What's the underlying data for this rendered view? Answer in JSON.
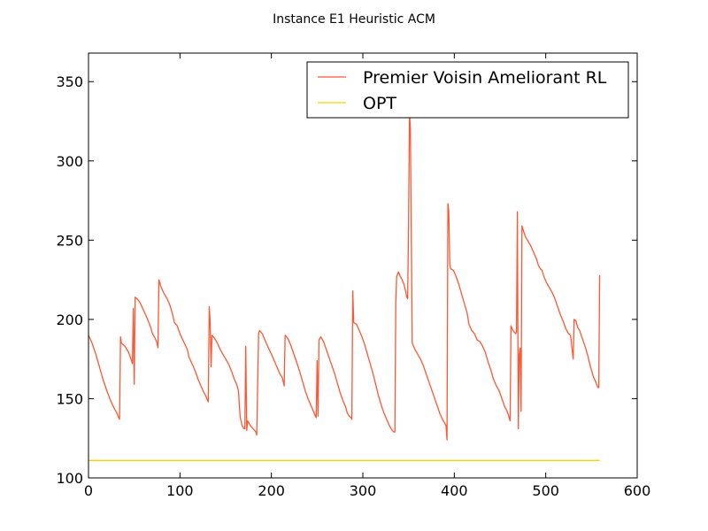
{
  "chart_data": {
    "type": "line",
    "title": "Instance E1 Heuristic ACM",
    "xlabel": "",
    "ylabel": "",
    "xlim": [
      0,
      600
    ],
    "ylim": [
      100,
      368
    ],
    "xticks": [
      0,
      100,
      200,
      300,
      400,
      500,
      600
    ],
    "yticks": [
      100,
      150,
      200,
      250,
      300,
      350
    ],
    "grid": false,
    "legend_position": "top-right",
    "series": [
      {
        "name": "Premier Voisin Ameliorant RL",
        "color": "#ff5733",
        "points": [
          [
            0,
            190
          ],
          [
            4,
            185
          ],
          [
            8,
            178
          ],
          [
            12,
            170
          ],
          [
            16,
            162
          ],
          [
            20,
            155
          ],
          [
            24,
            149
          ],
          [
            28,
            144
          ],
          [
            31,
            141
          ],
          [
            33,
            138
          ],
          [
            34,
            137
          ],
          [
            35,
            189
          ],
          [
            36,
            185
          ],
          [
            40,
            183
          ],
          [
            44,
            179
          ],
          [
            47,
            174
          ],
          [
            48,
            172
          ],
          [
            49,
            207
          ],
          [
            50,
            159
          ],
          [
            51,
            214
          ],
          [
            53,
            213
          ],
          [
            56,
            211
          ],
          [
            60,
            206
          ],
          [
            64,
            201
          ],
          [
            68,
            195
          ],
          [
            70,
            191
          ],
          [
            73,
            188
          ],
          [
            75,
            185
          ],
          [
            76,
            182
          ],
          [
            77,
            225
          ],
          [
            79,
            221
          ],
          [
            82,
            217
          ],
          [
            86,
            213
          ],
          [
            89,
            209
          ],
          [
            92,
            203
          ],
          [
            94,
            198
          ],
          [
            97,
            196
          ],
          [
            100,
            191
          ],
          [
            104,
            186
          ],
          [
            108,
            181
          ],
          [
            110,
            176
          ],
          [
            114,
            171
          ],
          [
            117,
            167
          ],
          [
            120,
            162
          ],
          [
            123,
            158
          ],
          [
            126,
            154
          ],
          [
            128,
            152
          ],
          [
            130,
            149
          ],
          [
            131,
            148
          ],
          [
            132,
            208
          ],
          [
            133,
            199
          ],
          [
            134,
            170
          ],
          [
            135,
            190
          ],
          [
            138,
            188
          ],
          [
            141,
            185
          ],
          [
            144,
            181
          ],
          [
            147,
            178
          ],
          [
            150,
            175
          ],
          [
            153,
            172
          ],
          [
            156,
            168
          ],
          [
            159,
            163
          ],
          [
            162,
            159
          ],
          [
            164,
            155
          ],
          [
            165,
            145
          ],
          [
            166,
            138
          ],
          [
            168,
            133
          ],
          [
            170,
            131
          ],
          [
            171,
            131
          ],
          [
            172,
            183
          ],
          [
            173,
            130
          ],
          [
            174,
            136
          ],
          [
            177,
            133
          ],
          [
            180,
            131
          ],
          [
            183,
            129
          ],
          [
            184,
            127
          ],
          [
            186,
            191
          ],
          [
            187,
            193
          ],
          [
            190,
            191
          ],
          [
            193,
            187
          ],
          [
            196,
            183
          ],
          [
            200,
            178
          ],
          [
            203,
            174
          ],
          [
            206,
            170
          ],
          [
            209,
            166
          ],
          [
            212,
            163
          ],
          [
            214,
            158
          ],
          [
            215,
            190
          ],
          [
            218,
            188
          ],
          [
            221,
            184
          ],
          [
            224,
            179
          ],
          [
            227,
            174
          ],
          [
            231,
            167
          ],
          [
            234,
            161
          ],
          [
            237,
            155
          ],
          [
            240,
            150
          ],
          [
            243,
            146
          ],
          [
            246,
            142
          ],
          [
            248,
            139
          ],
          [
            249,
            138
          ],
          [
            250,
            174
          ],
          [
            251,
            139
          ],
          [
            252,
            187
          ],
          [
            254,
            189
          ],
          [
            257,
            186
          ],
          [
            260,
            181
          ],
          [
            263,
            176
          ],
          [
            266,
            171
          ],
          [
            269,
            166
          ],
          [
            272,
            160
          ],
          [
            275,
            154
          ],
          [
            278,
            149
          ],
          [
            281,
            145
          ],
          [
            283,
            141
          ],
          [
            285,
            139
          ],
          [
            287,
            138
          ],
          [
            288,
            137
          ],
          [
            289,
            218
          ],
          [
            290,
            198
          ],
          [
            293,
            197
          ],
          [
            296,
            193
          ],
          [
            299,
            189
          ],
          [
            302,
            184
          ],
          [
            305,
            178
          ],
          [
            308,
            172
          ],
          [
            311,
            166
          ],
          [
            314,
            159
          ],
          [
            317,
            152
          ],
          [
            320,
            146
          ],
          [
            323,
            141
          ],
          [
            326,
            137
          ],
          [
            329,
            133
          ],
          [
            332,
            130
          ],
          [
            334,
            129
          ],
          [
            335,
            129
          ],
          [
            336,
            210
          ],
          [
            337,
            227
          ],
          [
            339,
            230
          ],
          [
            341,
            227
          ],
          [
            343,
            225
          ],
          [
            345,
            222
          ],
          [
            347,
            217
          ],
          [
            348,
            214
          ],
          [
            349,
            213
          ],
          [
            350,
            260
          ],
          [
            351,
            331
          ],
          [
            352,
            320
          ],
          [
            353,
            250
          ],
          [
            354,
            185
          ],
          [
            357,
            181
          ],
          [
            360,
            178
          ],
          [
            363,
            175
          ],
          [
            366,
            171
          ],
          [
            369,
            166
          ],
          [
            372,
            161
          ],
          [
            375,
            156
          ],
          [
            378,
            151
          ],
          [
            381,
            146
          ],
          [
            384,
            141
          ],
          [
            387,
            137
          ],
          [
            390,
            134
          ],
          [
            391,
            133
          ],
          [
            392,
            124
          ],
          [
            393,
            273
          ],
          [
            394,
            268
          ],
          [
            395,
            235
          ],
          [
            396,
            232
          ],
          [
            399,
            231
          ],
          [
            402,
            227
          ],
          [
            405,
            222
          ],
          [
            408,
            216
          ],
          [
            411,
            210
          ],
          [
            414,
            204
          ],
          [
            416,
            197
          ],
          [
            419,
            193
          ],
          [
            422,
            191
          ],
          [
            425,
            187
          ],
          [
            428,
            186
          ],
          [
            431,
            183
          ],
          [
            434,
            179
          ],
          [
            437,
            173
          ],
          [
            440,
            168
          ],
          [
            443,
            162
          ],
          [
            446,
            158
          ],
          [
            449,
            155
          ],
          [
            452,
            150
          ],
          [
            455,
            145
          ],
          [
            457,
            143
          ],
          [
            459,
            140
          ],
          [
            460,
            138
          ],
          [
            461,
            136
          ],
          [
            462,
            196
          ],
          [
            464,
            193
          ],
          [
            467,
            191
          ],
          [
            468,
            192
          ],
          [
            469,
            268
          ],
          [
            470,
            131
          ],
          [
            471,
            178
          ],
          [
            472,
            182
          ],
          [
            473,
            142
          ],
          [
            474,
            259
          ],
          [
            476,
            255
          ],
          [
            478,
            252
          ],
          [
            481,
            249
          ],
          [
            484,
            246
          ],
          [
            487,
            242
          ],
          [
            490,
            238
          ],
          [
            492,
            234
          ],
          [
            494,
            232
          ],
          [
            496,
            231
          ],
          [
            498,
            227
          ],
          [
            501,
            223
          ],
          [
            504,
            220
          ],
          [
            507,
            217
          ],
          [
            510,
            213
          ],
          [
            513,
            208
          ],
          [
            516,
            203
          ],
          [
            519,
            199
          ],
          [
            522,
            194
          ],
          [
            525,
            191
          ],
          [
            527,
            190
          ],
          [
            528,
            186
          ],
          [
            529,
            180
          ],
          [
            530,
            175
          ],
          [
            531,
            200
          ],
          [
            533,
            199
          ],
          [
            535,
            195
          ],
          [
            537,
            193
          ],
          [
            540,
            188
          ],
          [
            543,
            183
          ],
          [
            546,
            177
          ],
          [
            549,
            170
          ],
          [
            552,
            164
          ],
          [
            555,
            160
          ],
          [
            557,
            157
          ],
          [
            558,
            157
          ],
          [
            559,
            228
          ]
        ]
      },
      {
        "name": "OPT",
        "color": "#f5d300",
        "points": [
          [
            0,
            111
          ],
          [
            559,
            111
          ]
        ]
      }
    ]
  }
}
